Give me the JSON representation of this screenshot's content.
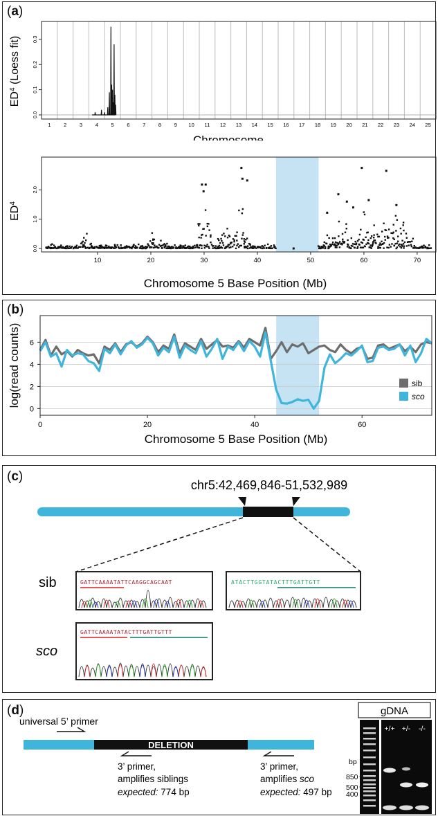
{
  "panels": {
    "a": {
      "label_open": "(",
      "label_letter": "a",
      "label_close": ")"
    },
    "b": {
      "label_open": "(",
      "label_letter": "b",
      "label_close": ")"
    },
    "c": {
      "label_open": "(",
      "label_letter": "c",
      "label_close": ")"
    },
    "d": {
      "label_open": "(",
      "label_letter": "d",
      "label_close": ")"
    }
  },
  "chart_data": [
    {
      "id": "genome-scan",
      "type": "line",
      "ylabel_main": "ED",
      "ylabel_sup": "4",
      "ylabel_rest": " (Loess fit)",
      "xlabel": "Chromosome",
      "categories": [
        "1",
        "2",
        "3",
        "4",
        "5",
        "6",
        "7",
        "8",
        "9",
        "10",
        "11",
        "12",
        "13",
        "14",
        "15",
        "16",
        "17",
        "18",
        "19",
        "20",
        "21",
        "22",
        "23",
        "24",
        "25"
      ],
      "yticks": [
        "0.0",
        "0.1",
        "0.2",
        "0.3"
      ],
      "ylim": [
        0,
        0.36
      ],
      "grid": "vertical chromosome separators",
      "peaks": [
        {
          "chromosome": "5",
          "x": 4.9,
          "y": 0.35
        },
        {
          "chromosome": "5",
          "x": 5.1,
          "y": 0.28
        },
        {
          "chromosome": "5",
          "x": 5.0,
          "y": 0.12
        }
      ]
    },
    {
      "id": "chr5-ed4",
      "type": "scatter",
      "ylabel_main": "ED",
      "ylabel_sup": "4",
      "xlabel": "Chromosome 5 Base Position (Mb)",
      "xticks": [
        "10",
        "20",
        "30",
        "40",
        "50",
        "60",
        "70"
      ],
      "yticks": [
        "0.0",
        "1.0",
        "2.0"
      ],
      "xlim": [
        0,
        73
      ],
      "ylim": [
        0,
        3.0
      ],
      "highlight_region_mb": [
        43.5,
        51.5
      ],
      "highlight_color": "#c5e3f3",
      "outliers": [
        {
          "x": 37.0,
          "y": 2.75
        },
        {
          "x": 37.2,
          "y": 2.38
        },
        {
          "x": 38.1,
          "y": 2.32
        },
        {
          "x": 59.6,
          "y": 2.75
        },
        {
          "x": 64.2,
          "y": 2.65
        },
        {
          "x": 29.6,
          "y": 2.18
        },
        {
          "x": 30.3,
          "y": 2.18
        },
        {
          "x": 29.9,
          "y": 1.95
        },
        {
          "x": 55.2,
          "y": 1.85
        },
        {
          "x": 60.9,
          "y": 1.65
        },
        {
          "x": 56.8,
          "y": 1.6
        },
        {
          "x": 66.1,
          "y": 1.48
        },
        {
          "x": 58.0,
          "y": 1.4
        },
        {
          "x": 53.1,
          "y": 1.22
        },
        {
          "x": 46.8,
          "y": 0
        }
      ]
    },
    {
      "id": "read-counts",
      "type": "line",
      "ylabel": "log(read counts)",
      "xlabel": "Chromosome 5 Base Position (Mb)",
      "xticks": [
        "0",
        "20",
        "40",
        "60"
      ],
      "yticks": [
        "0",
        "2",
        "4",
        "6"
      ],
      "xlim": [
        0,
        73
      ],
      "ylim": [
        -0.6,
        8.4
      ],
      "highlight_region_mb": [
        44,
        52
      ],
      "highlight_color": "#c5e3f3",
      "series": [
        {
          "name": "sib",
          "color": "#6d6d6d",
          "x": [
            0,
            1,
            2,
            3,
            4,
            5,
            6,
            7,
            8,
            9,
            10,
            11,
            12,
            13,
            14,
            15,
            16,
            17,
            18,
            19,
            20,
            21,
            22,
            23,
            24,
            25,
            26,
            27,
            28,
            29,
            30,
            31,
            32,
            33,
            34,
            35,
            36,
            37,
            38,
            39,
            40,
            41,
            42,
            43,
            44,
            45,
            46,
            47,
            48,
            49,
            50,
            51,
            52,
            53,
            54,
            55,
            56,
            57,
            58,
            59,
            60,
            61,
            62,
            63,
            64,
            65,
            66,
            67,
            68,
            69,
            70,
            71,
            72,
            73
          ],
          "y": [
            5.3,
            6.2,
            4.8,
            5.6,
            4.9,
            5.2,
            4.7,
            5.3,
            5.0,
            4.8,
            4.9,
            4.1,
            5.6,
            5.3,
            5.9,
            5.1,
            5.8,
            6.0,
            5.6,
            5.9,
            6.5,
            6.0,
            5.1,
            5.7,
            5.4,
            6.7,
            5.0,
            5.9,
            5.6,
            5.3,
            6.3,
            5.4,
            5.8,
            6.2,
            5.6,
            5.7,
            5.5,
            6.1,
            5.5,
            6.3,
            6.0,
            5.7,
            7.3,
            4.5,
            5.2,
            6.0,
            5.1,
            5.8,
            5.6,
            5.9,
            5.0,
            5.3,
            5.6,
            5.7,
            5.3,
            5.1,
            5.8,
            5.3,
            5.0,
            5.4,
            5.6,
            4.5,
            4.6,
            5.7,
            5.8,
            5.4,
            5.6,
            5.8,
            5.2,
            5.6,
            5.1,
            5.8,
            6.0,
            5.9
          ]
        },
        {
          "name": "sco",
          "color": "#40b5dc",
          "x": [
            0,
            1,
            2,
            3,
            4,
            5,
            6,
            7,
            8,
            9,
            10,
            11,
            12,
            13,
            14,
            15,
            16,
            17,
            18,
            19,
            20,
            21,
            22,
            23,
            24,
            25,
            26,
            27,
            28,
            29,
            30,
            31,
            32,
            33,
            34,
            35,
            36,
            37,
            38,
            39,
            40,
            41,
            42,
            43,
            44,
            45,
            46,
            47,
            48,
            49,
            50,
            51,
            52,
            53,
            54,
            55,
            56,
            57,
            58,
            59,
            60,
            61,
            62,
            63,
            64,
            65,
            66,
            67,
            68,
            69,
            70,
            71,
            72,
            73
          ],
          "y": [
            5.2,
            6.0,
            4.7,
            5.0,
            3.8,
            5.3,
            4.8,
            5.0,
            4.9,
            4.3,
            4.1,
            3.4,
            5.4,
            5.0,
            5.8,
            4.9,
            5.7,
            6.1,
            5.5,
            5.8,
            6.4,
            5.9,
            4.8,
            5.5,
            5.1,
            6.5,
            4.6,
            5.7,
            5.3,
            5.0,
            6.1,
            4.7,
            5.4,
            6.3,
            4.5,
            5.6,
            5.3,
            6.0,
            5.2,
            6.1,
            5.6,
            4.7,
            6.9,
            4.3,
            1.7,
            0.5,
            0.45,
            0.6,
            0.85,
            0.7,
            0.8,
            0.0,
            0.7,
            3.7,
            4.9,
            4.1,
            4.5,
            5.0,
            4.8,
            5.2,
            5.7,
            4.2,
            4.3,
            5.5,
            5.6,
            5.3,
            5.4,
            5.8,
            4.8,
            5.7,
            4.2,
            5.0,
            6.3,
            5.9
          ]
        }
      ],
      "legend": "right"
    }
  ],
  "panel_c": {
    "coords": "chr5:42,469,846-51,532,989",
    "sib_label": "sib",
    "sco_label": "sco",
    "seq_sib_left": "GATTCAAAATATTCAAGGCAGCAAT",
    "seq_sib_right": "ATACTTGGTATACTTTGATTGTT",
    "seq_sco": "GATTCAAAATATACTTTGATTGTTT"
  },
  "panel_d": {
    "primer_label": "universal 5’ primer",
    "deletion_label": "DELETION",
    "primer_sib_line1": "3’ primer,",
    "primer_sib_line2": "amplifies siblings",
    "primer_sib_expected_label": "expected:",
    "primer_sib_expected_value": " 774 bp",
    "primer_sco_line1": "3’ primer,",
    "primer_sco_line2_pre": "amplifies ",
    "primer_sco_line2_em": "sco",
    "primer_sco_expected_label": "expected:",
    "primer_sco_expected_value": " 497 bp",
    "gel_title": "gDNA",
    "gel_unit": "bp",
    "gel_markers": [
      "850",
      "500",
      "400"
    ],
    "lanes": [
      "+/+",
      "+/-",
      "-/-"
    ]
  }
}
